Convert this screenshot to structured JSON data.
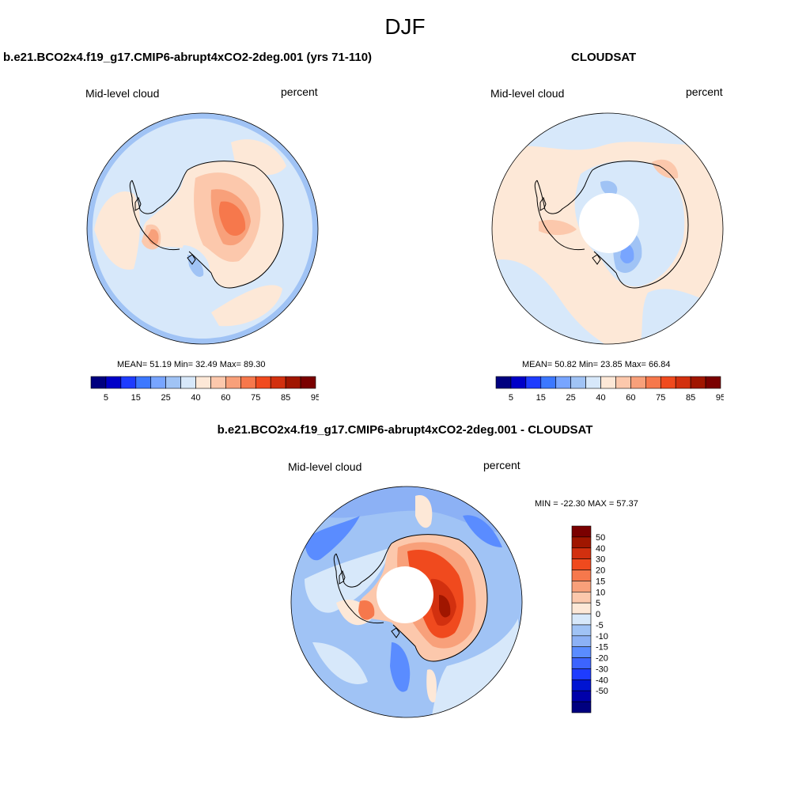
{
  "figure": {
    "season": "DJF"
  },
  "colors": {
    "levels": [
      "#00007f",
      "#0000c8",
      "#1e3cff",
      "#3c78ff",
      "#78a5ff",
      "#a0c3f5",
      "#d7e8fa",
      "#fde8d7",
      "#fcc8ac",
      "#f8a07a",
      "#f6784c",
      "#f04a1e",
      "#d2300f",
      "#a01600",
      "#7a0000"
    ],
    "diff_levels": [
      "#7a0000",
      "#a01600",
      "#d2300f",
      "#f04a1e",
      "#f6784c",
      "#f8a07a",
      "#fcc8ac",
      "#fde8d7",
      "#d7e8fa",
      "#a0c3f5",
      "#8cb1f5",
      "#5a8cff",
      "#3c64ff",
      "#1e3cff",
      "#0014d2",
      "#0000aa",
      "#00007f"
    ]
  },
  "panels": [
    {
      "title": "b.e21.BCO2x4.f19_g17.CMIP6-abrupt4xCO2-2deg.001 (yrs 71-110)",
      "variable": "Mid-level cloud",
      "units": "percent",
      "stats": {
        "mean_label": "MEAN=",
        "mean": "51.19",
        "min_label": "Min=",
        "min": "32.49",
        "max_label": "Max=",
        "max": "89.30"
      },
      "colorbar_labels": [
        "5",
        "15",
        "25",
        "40",
        "60",
        "75",
        "85",
        "95"
      ]
    },
    {
      "title": "CLOUDSAT",
      "variable": "Mid-level cloud",
      "units": "percent",
      "stats": {
        "mean_label": "MEAN=",
        "mean": "50.82",
        "min_label": "Min=",
        "min": "23.85",
        "max_label": "Max=",
        "max": "66.84"
      },
      "colorbar_labels": [
        "5",
        "15",
        "25",
        "40",
        "60",
        "75",
        "85",
        "95"
      ]
    }
  ],
  "difference": {
    "title": "b.e21.BCO2x4.f19_g17.CMIP6-abrupt4xCO2-2deg.001 - CLOUDSAT",
    "variable": "Mid-level cloud",
    "units": "percent",
    "minmax": "MIN = -22.30 MAX =  57.37",
    "colorbar_labels": [
      "50",
      "40",
      "30",
      "20",
      "15",
      "10",
      "5",
      "0",
      "-5",
      "-10",
      "-15",
      "-20",
      "-30",
      "-40",
      "-50"
    ]
  }
}
